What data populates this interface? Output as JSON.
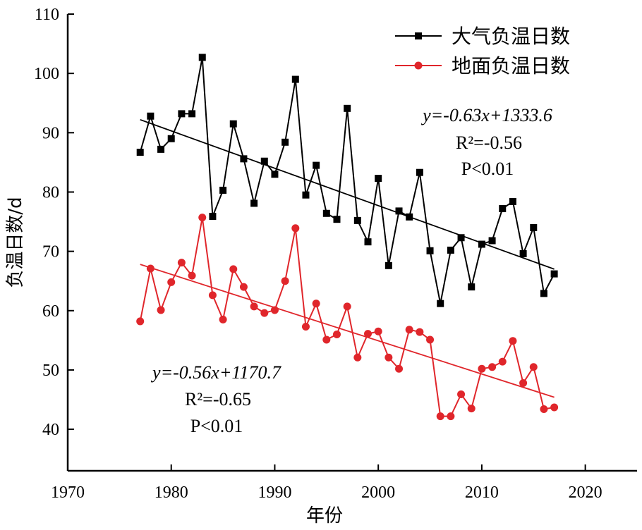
{
  "chart_data": {
    "type": "line",
    "xlabel": "年份",
    "ylabel": "负温日数/d",
    "xlim": [
      1970,
      2025
    ],
    "ylim": [
      33,
      110
    ],
    "x_ticks": [
      1970,
      1980,
      1990,
      2000,
      2010,
      2020
    ],
    "y_ticks": [
      40,
      50,
      60,
      70,
      80,
      90,
      100,
      110
    ],
    "legend_position": "top-right",
    "grid": false,
    "x": [
      1977,
      1978,
      1979,
      1980,
      1981,
      1982,
      1983,
      1984,
      1985,
      1986,
      1987,
      1988,
      1989,
      1990,
      1991,
      1992,
      1993,
      1994,
      1995,
      1996,
      1997,
      1998,
      1999,
      2000,
      2001,
      2002,
      2003,
      2004,
      2005,
      2006,
      2007,
      2008,
      2009,
      2010,
      2011,
      2012,
      2013,
      2014,
      2015,
      2016,
      2017
    ],
    "series": [
      {
        "name": "大气负温日数",
        "color": "#000000",
        "marker": "square",
        "values": [
          86.7,
          92.8,
          87.2,
          89.0,
          93.2,
          93.2,
          102.7,
          75.9,
          80.3,
          91.5,
          85.6,
          78.1,
          85.2,
          83.0,
          88.4,
          99.0,
          79.5,
          84.5,
          76.4,
          75.4,
          94.1,
          75.2,
          71.6,
          82.3,
          67.6,
          76.8,
          75.8,
          83.3,
          70.1,
          61.2,
          70.2,
          72.3,
          64.0,
          71.2,
          71.8,
          77.2,
          78.4,
          69.6,
          74.0,
          62.9,
          66.2
        ],
        "trend": {
          "slope": -0.63,
          "start": [
            1977,
            92.2
          ],
          "end": [
            2017,
            67.0
          ]
        }
      },
      {
        "name": "地面负温日数",
        "color": "#e0262b",
        "marker": "circle",
        "values": [
          58.2,
          67.1,
          60.1,
          64.8,
          68.1,
          65.9,
          75.7,
          62.6,
          58.5,
          67.0,
          64.0,
          60.7,
          59.6,
          60.1,
          65.0,
          73.9,
          57.3,
          61.2,
          55.1,
          56.0,
          60.7,
          52.1,
          56.1,
          56.5,
          52.1,
          50.2,
          56.8,
          56.4,
          55.1,
          42.2,
          42.2,
          45.9,
          43.5,
          50.2,
          50.5,
          51.4,
          54.9,
          47.8,
          50.5,
          43.4,
          43.7
        ],
        "trend": {
          "slope": -0.56,
          "start": [
            1977,
            67.8
          ],
          "end": [
            2017,
            45.4
          ]
        }
      }
    ],
    "annotations": {
      "air": {
        "line1": "y=-0.63x+1333.6",
        "line2": "R²=-0.56",
        "line3": "P<0.01"
      },
      "ground": {
        "line1": "y=-0.56x+1170.7",
        "line2": "R²=-0.65",
        "line3": "P<0.01"
      }
    }
  }
}
